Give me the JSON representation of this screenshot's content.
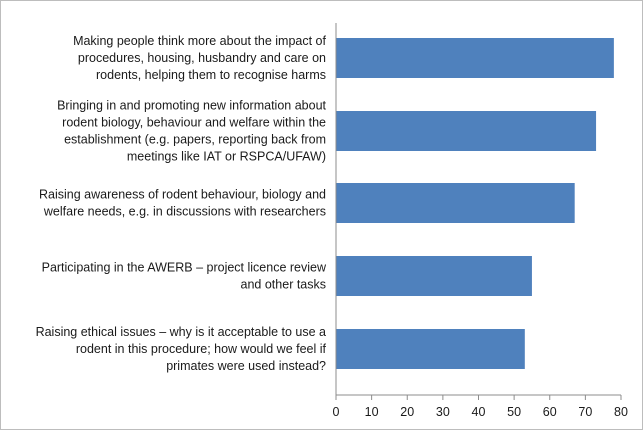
{
  "chart_data": {
    "type": "bar",
    "orientation": "horizontal",
    "categories": [
      [
        "Making people think more about the impact of",
        "procedures, housing, husbandry and care on",
        "rodents, helping them to recognise harms"
      ],
      [
        "Bringing in and promoting new information about",
        "rodent biology, behaviour and welfare within the",
        "establishment (e.g. papers, reporting back from",
        "meetings like IAT or RSPCA/UFAW)"
      ],
      [
        "Raising awareness of rodent behaviour, biology and",
        "welfare needs, e.g. in discussions with researchers"
      ],
      [
        "Participating in the AWERB – project licence review",
        "and other tasks"
      ],
      [
        "Raising ethical issues – why is it acceptable to use a",
        "rodent in this procedure; how would we feel if",
        "primates were used instead?"
      ]
    ],
    "values": [
      78,
      73,
      67,
      55,
      53
    ],
    "xlim": [
      0,
      80
    ],
    "x_ticks": [
      0,
      10,
      20,
      30,
      40,
      50,
      60,
      70,
      80
    ],
    "x_tick_labels": [
      "0",
      "10",
      "20",
      "30",
      "40",
      "50",
      "60",
      "70",
      "80"
    ],
    "bar_color": "#4f81bd",
    "title": "",
    "xlabel": "",
    "ylabel": "",
    "grid": false,
    "legend": "none"
  }
}
